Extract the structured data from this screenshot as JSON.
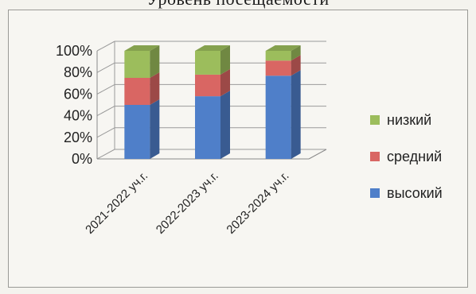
{
  "chart_data": {
    "type": "bar",
    "stacked": true,
    "percent": true,
    "title": "Уровень посещаемости",
    "categories": [
      "2021-2022 уч.г.",
      "2022-2023 уч.г.",
      "2023-2024 уч.г."
    ],
    "series": [
      {
        "name": "высокий",
        "values": [
          50,
          58,
          77
        ],
        "color": "#4f7fc9"
      },
      {
        "name": "средний",
        "values": [
          25,
          20,
          14
        ],
        "color": "#d96663"
      },
      {
        "name": "низкий",
        "values": [
          25,
          22,
          9
        ],
        "color": "#9cbd5c"
      }
    ],
    "y_ticks": [
      "0%",
      "20%",
      "40%",
      "60%",
      "80%",
      "100%"
    ],
    "ylim": [
      0,
      100
    ],
    "grid": true,
    "legend_position": "right"
  }
}
